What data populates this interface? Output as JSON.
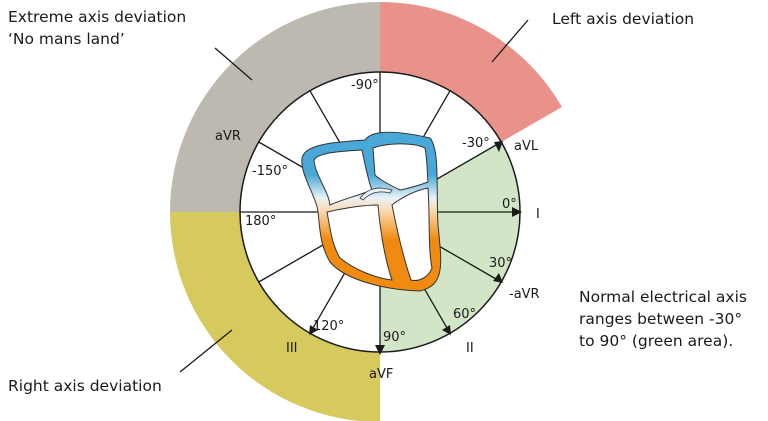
{
  "colors": {
    "extreme": "#bdb9b1",
    "left": "#e8928a",
    "right": "#d6c95e",
    "normal": "#d2e5c6",
    "heart_top": "#4aa8d8",
    "heart_bottom": "#f08a10"
  },
  "annotations": {
    "extreme_line1": "Extreme axis deviation",
    "extreme_line2": "‘No mans land’",
    "left": "Left axis deviation",
    "right": "Right axis deviation",
    "normal_line1": "Normal electrical axis",
    "normal_line2": "ranges between -30°",
    "normal_line3": "to 90° (green area)."
  },
  "angles": {
    "m90": "-90°",
    "m150": "-150°",
    "a180": "180°",
    "a120": "120°",
    "a90": "90°",
    "a60": "60°",
    "a30": "30°",
    "a0": "0°",
    "m30": "-30°"
  },
  "leads": {
    "aVR": "aVR",
    "III": "III",
    "aVF": "aVF",
    "II": "II",
    "maVR": "-aVR",
    "I": "I",
    "aVL": "aVL"
  }
}
